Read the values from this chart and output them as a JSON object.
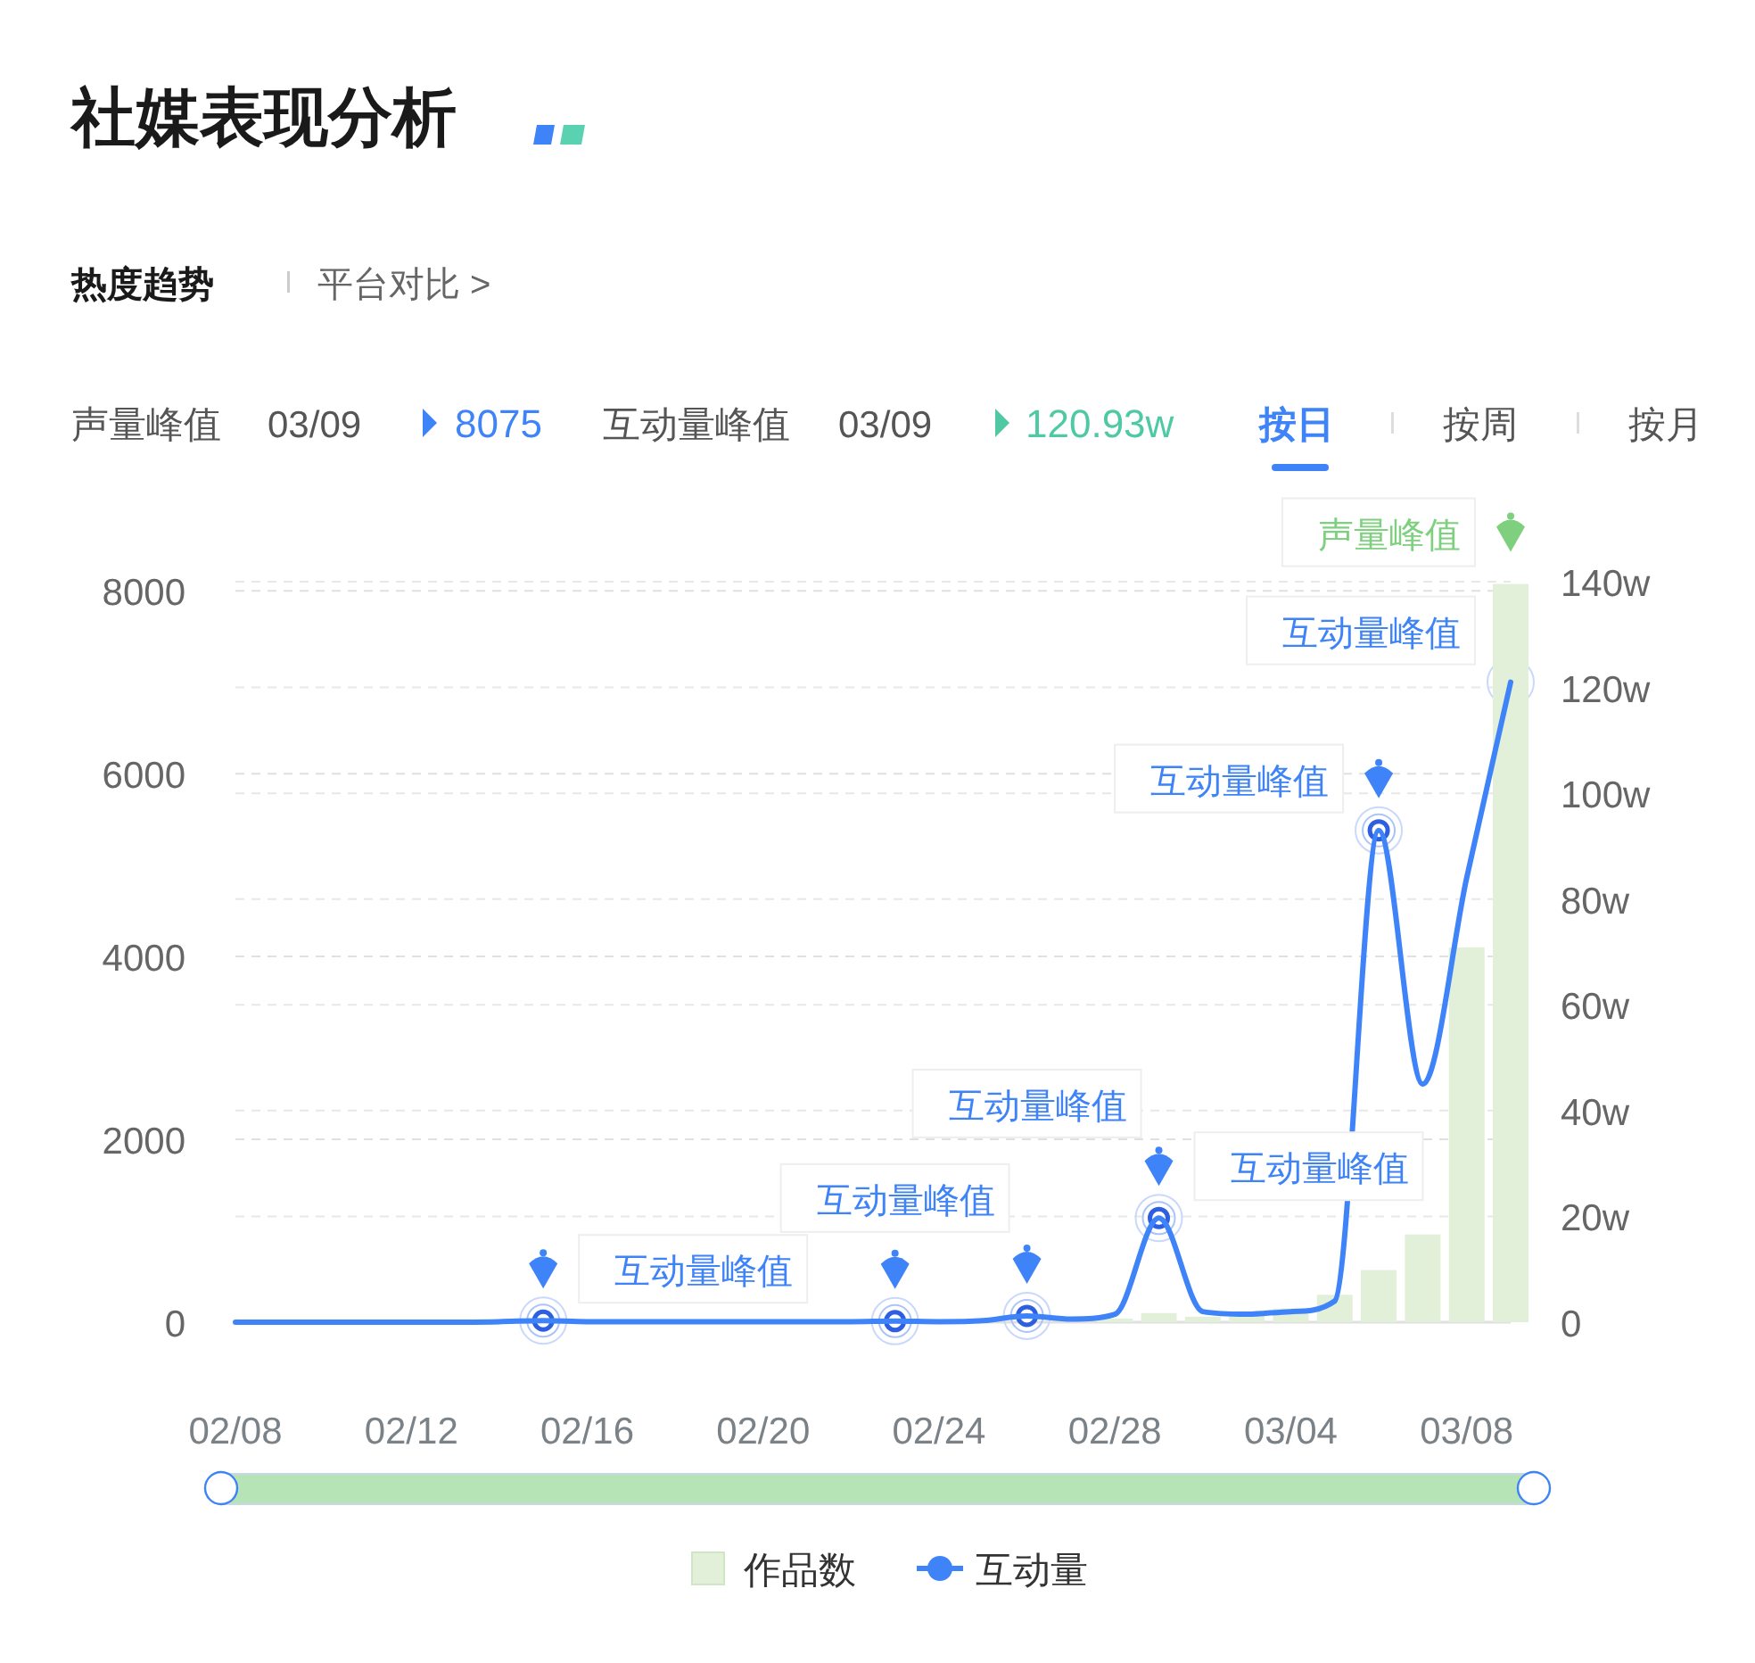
{
  "chart_data": {
    "type": "bar",
    "title": "社媒表现分析",
    "x": [
      "--02-08",
      "--02-09",
      "--02-10",
      "--02-11",
      "--02-12",
      "--02-13",
      "--02-14",
      "--02-15",
      "--02-16",
      "--02-17",
      "--02-18",
      "--02-19",
      "--02-20",
      "--02-21",
      "--02-22",
      "--02-23",
      "--02-24",
      "--02-25",
      "--02-26",
      "--02-27",
      "--02-28",
      "--03-01",
      "--03-02",
      "--03-03",
      "--03-04",
      "--03-05",
      "--03-06",
      "--03-07",
      "--03-08",
      "--03-09"
    ],
    "series": [
      {
        "name": "作品数",
        "color": "#e2f0d9",
        "values": [
          0,
          0,
          0,
          0,
          0,
          0,
          0,
          0,
          0,
          0,
          0,
          0,
          0,
          0,
          0,
          0,
          0,
          0,
          null,
          null,
          40,
          100,
          60,
          70,
          150,
          300,
          570,
          960,
          4100,
          8075
        ]
      },
      {
        "name": "互动量",
        "type": "line",
        "axis": "y2",
        "color": "#3f83f8",
        "values": [
          0,
          0,
          0,
          0,
          0,
          0,
          0.1,
          0.3,
          0.1,
          0.1,
          0.1,
          0.1,
          0.1,
          0.1,
          0.1,
          0.2,
          0.1,
          0.3,
          1.2,
          0.6,
          1.5,
          19.7,
          2,
          1.5,
          2,
          4,
          93,
          45,
          84,
          121
        ]
      }
    ],
    "xlim": [
      "--02-08",
      "--03-09"
    ],
    "xticks": [
      {
        "value": "--02-08",
        "label": "02/08"
      },
      {
        "value": "--02-12",
        "label": "02/12"
      },
      {
        "value": "--02-16",
        "label": "02/16"
      },
      {
        "value": "--02-20",
        "label": "02/20"
      },
      {
        "value": "--02-24",
        "label": "02/24"
      },
      {
        "value": "--02-28",
        "label": "02/28"
      },
      {
        "value": "--03-04",
        "label": "03/04"
      },
      {
        "value": "--03-08",
        "label": "03/08"
      }
    ],
    "ylim": [
      0,
      8100
    ],
    "yticks": [
      0,
      2000,
      4000,
      6000,
      8000
    ],
    "y2lim": [
      0,
      140
    ],
    "y2ticks": [
      {
        "value": 0,
        "label": "0"
      },
      {
        "value": 20,
        "label": "20w"
      },
      {
        "value": 40,
        "label": "40w"
      },
      {
        "value": 60,
        "label": "60w"
      },
      {
        "value": 80,
        "label": "80w"
      },
      {
        "value": 100,
        "label": "100w"
      },
      {
        "value": 120,
        "label": "120w"
      },
      {
        "value": 140,
        "label": "140w"
      }
    ],
    "grid": "y",
    "legend": "bottom",
    "annotations": [
      "热度趋势",
      "平台对比 >",
      "声量峰值",
      "03/09",
      "8075",
      "互动量峰值",
      "03/09",
      "120.93w",
      "按日",
      "按周",
      "按月",
      "互动量峰值",
      "互动量峰值",
      "互动量峰值",
      "互动量峰值",
      "互动量峰值",
      "互动量峰值",
      "声量峰值"
    ]
  }
}
